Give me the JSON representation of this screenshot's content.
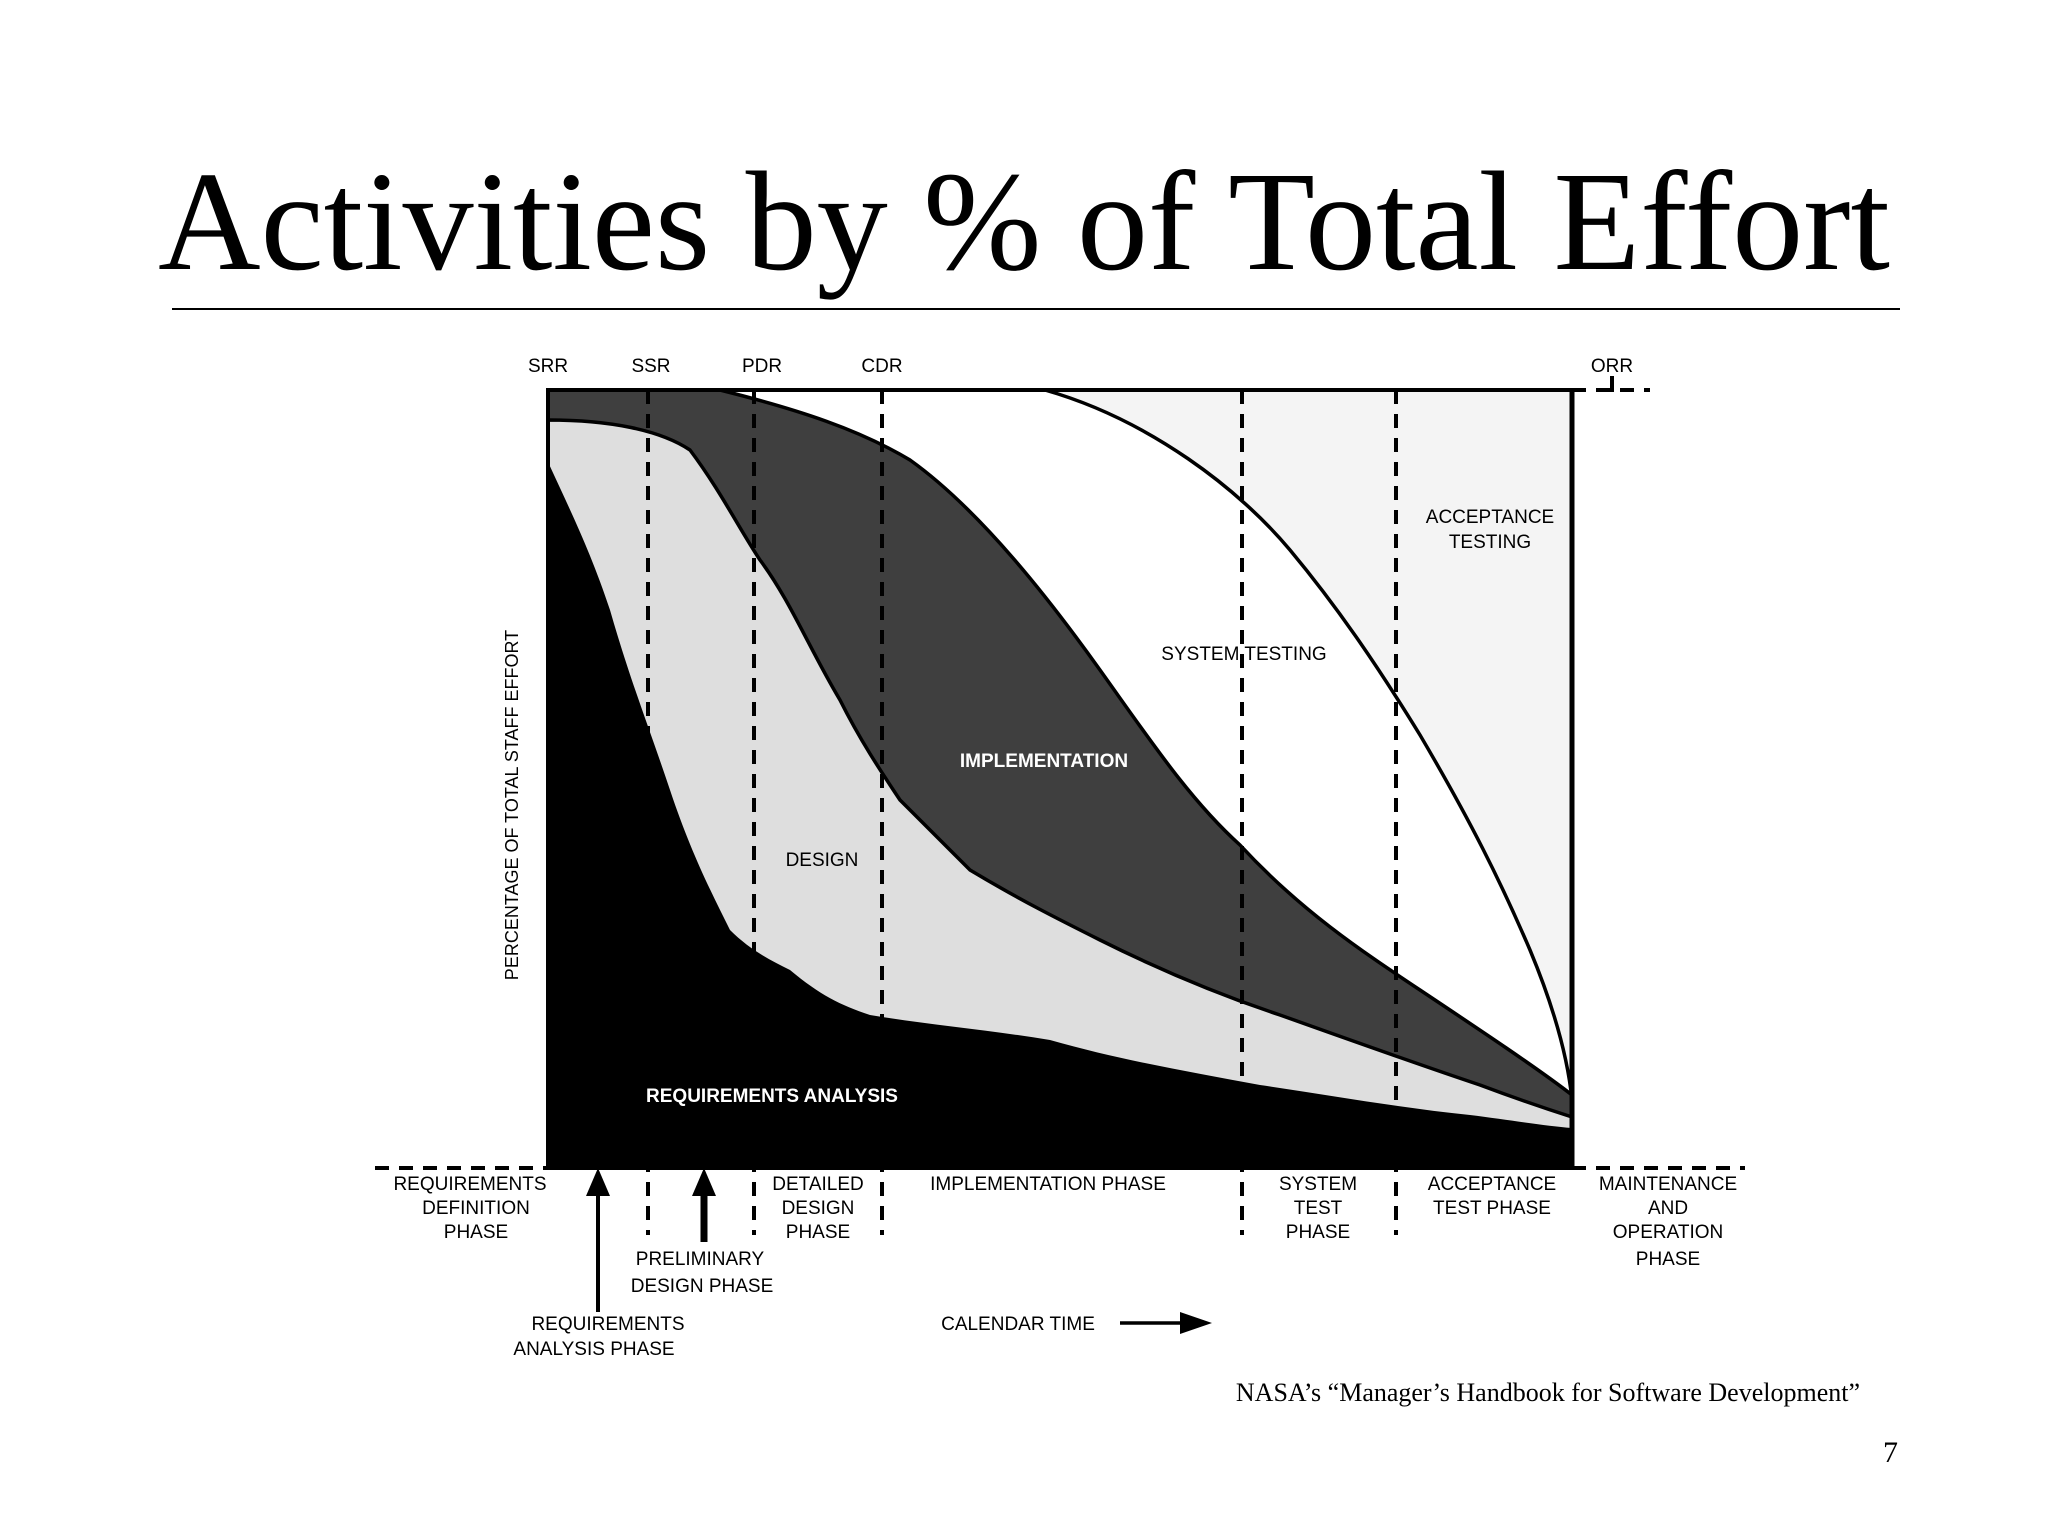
{
  "slide": {
    "title": "Activities by % of Total Effort",
    "source": "NASA’s “Manager’s Handbook for Software Development”",
    "page_number": "7"
  },
  "diagram": {
    "y_axis_label": "PERCENTAGE OF TOTAL STAFF EFFORT",
    "x_axis_label": "CALENDAR TIME",
    "milestones": [
      "SRR",
      "SSR",
      "PDR",
      "CDR",
      "ORR"
    ],
    "activities": {
      "requirements_analysis": "REQUIREMENTS ANALYSIS",
      "design": "DESIGN",
      "implementation": "IMPLEMENTATION",
      "system_testing": "SYSTEM TESTING",
      "acceptance_testing": [
        "ACCEPTANCE",
        "TESTING"
      ]
    },
    "phases": {
      "requirements_definition": [
        "REQUIREMENTS",
        "DEFINITION",
        "PHASE"
      ],
      "requirements_analysis": [
        "REQUIREMENTS",
        "ANALYSIS PHASE"
      ],
      "preliminary_design": [
        "PRELIMINARY",
        "DESIGN PHASE"
      ],
      "detailed_design": [
        "DETAILED",
        "DESIGN",
        "PHASE"
      ],
      "implementation": "IMPLEMENTATION PHASE",
      "system_test": [
        "SYSTEM",
        "TEST",
        "PHASE"
      ],
      "acceptance_test": [
        "ACCEPTANCE",
        "TEST PHASE"
      ],
      "maintenance": [
        "MAINTENANCE",
        "AND",
        "OPERATION",
        "PHASE"
      ]
    },
    "colors": {
      "requirements_analysis": "#000000",
      "design": "#dedede",
      "implementation": "#3f3f3f",
      "system_testing": "#ffffff",
      "acceptance_testing": "#f4f4f4"
    }
  }
}
